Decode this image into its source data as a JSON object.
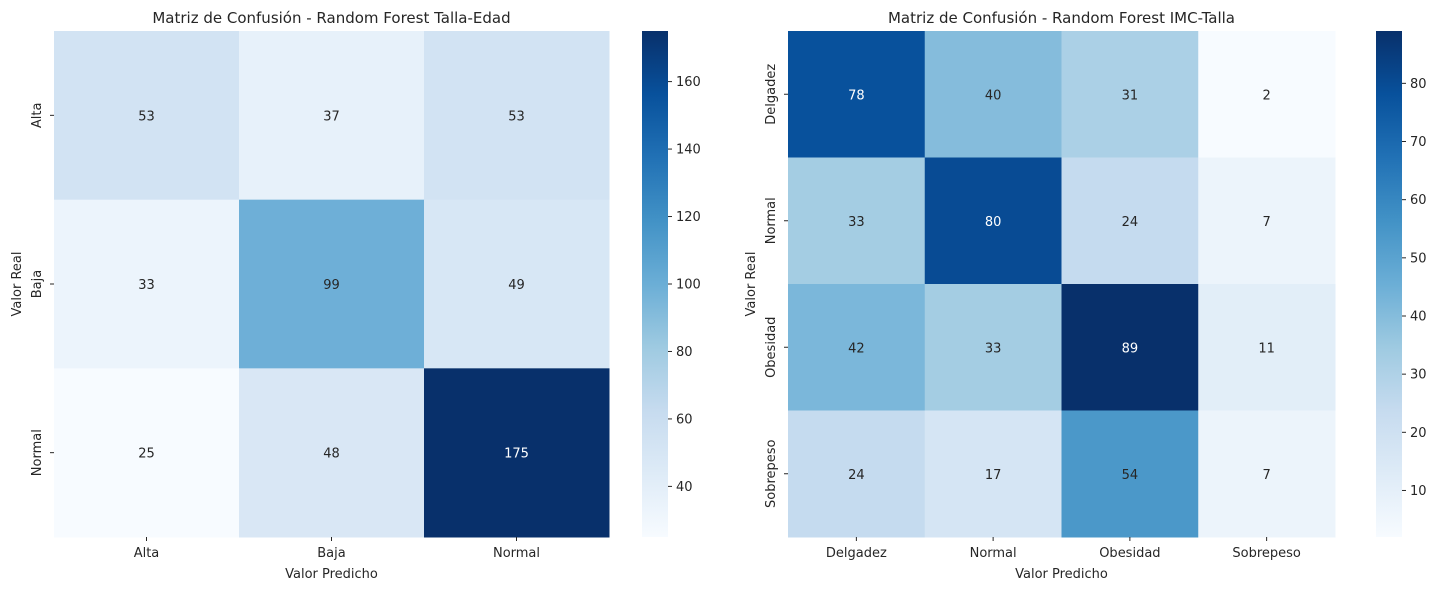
{
  "chart_data": [
    {
      "type": "heatmap",
      "title": "Matriz de Confusión - Random Forest Talla-Edad",
      "xlabel": "Valor Predicho",
      "ylabel": "Valor Real",
      "x_categories": [
        "Alta",
        "Baja",
        "Normal"
      ],
      "y_categories": [
        "Alta",
        "Baja",
        "Normal"
      ],
      "values": [
        [
          53,
          37,
          53
        ],
        [
          33,
          99,
          49
        ],
        [
          25,
          48,
          175
        ]
      ],
      "colormap": "Blues",
      "vmin": 25,
      "vmax": 175,
      "colorbar_ticks": [
        40,
        60,
        80,
        100,
        120,
        140,
        160
      ]
    },
    {
      "type": "heatmap",
      "title": "Matriz de Confusión - Random Forest IMC-Talla",
      "xlabel": "Valor Predicho",
      "ylabel": "Valor Real",
      "x_categories": [
        "Delgadez",
        "Normal",
        "Obesidad",
        "Sobrepeso"
      ],
      "y_categories": [
        "Delgadez",
        "Normal",
        "Obesidad",
        "Sobrepeso"
      ],
      "values": [
        [
          78,
          40,
          31,
          2
        ],
        [
          33,
          80,
          24,
          7
        ],
        [
          42,
          33,
          89,
          11
        ],
        [
          24,
          17,
          54,
          7
        ]
      ],
      "colormap": "Blues",
      "vmin": 2,
      "vmax": 89,
      "colorbar_ticks": [
        10,
        20,
        30,
        40,
        50,
        60,
        70,
        80
      ]
    }
  ],
  "colors": {
    "blues_stops": [
      "#f7fbff",
      "#deebf7",
      "#c6dbef",
      "#9ecae1",
      "#6baed6",
      "#4292c6",
      "#2171b5",
      "#08519c",
      "#08306b"
    ]
  }
}
